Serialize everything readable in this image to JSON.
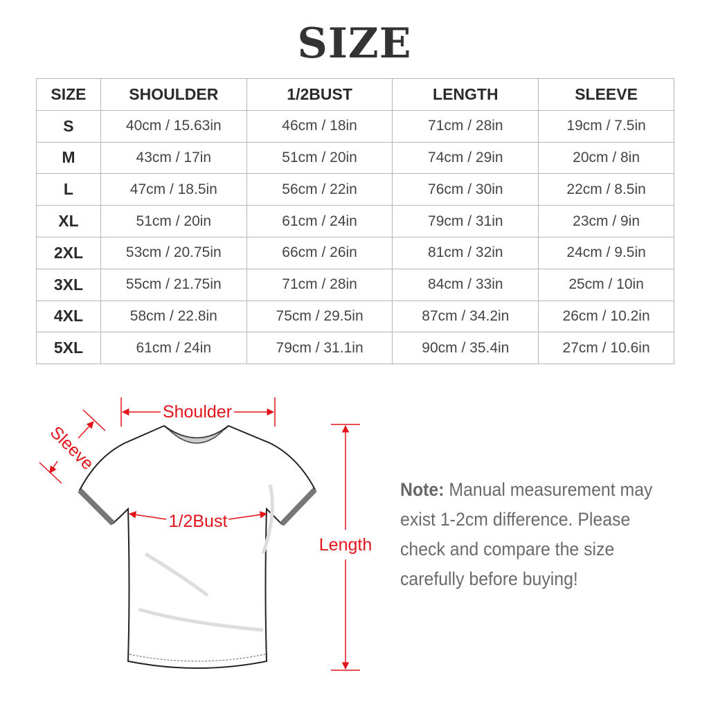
{
  "title": "SIZE",
  "table": {
    "headers": [
      "SIZE",
      "SHOULDER",
      "1/2BUST",
      "LENGTH",
      "SLEEVE"
    ],
    "rows": [
      [
        "S",
        "40cm / 15.63in",
        "46cm / 18in",
        "71cm / 28in",
        "19cm / 7.5in"
      ],
      [
        "M",
        "43cm / 17in",
        "51cm / 20in",
        "74cm / 29in",
        "20cm / 8in"
      ],
      [
        "L",
        "47cm / 18.5in",
        "56cm / 22in",
        "76cm / 30in",
        "22cm / 8.5in"
      ],
      [
        "XL",
        "51cm / 20in",
        "61cm / 24in",
        "79cm / 31in",
        "23cm / 9in"
      ],
      [
        "2XL",
        "53cm / 20.75in",
        "66cm / 26in",
        "81cm / 32in",
        "24cm / 9.5in"
      ],
      [
        "3XL",
        "55cm / 21.75in",
        "71cm / 28in",
        "84cm / 33in",
        "25cm / 10in"
      ],
      [
        "4XL",
        "58cm / 22.8in",
        "75cm / 29.5in",
        "87cm / 34.2in",
        "26cm / 10.2in"
      ],
      [
        "5XL",
        "61cm / 24in",
        "79cm / 31.1in",
        "90cm / 35.4in",
        "27cm / 10.6in"
      ]
    ]
  },
  "diagram": {
    "shoulder_label": "Shoulder",
    "sleeve_label": "Sleeve",
    "bust_label": "1/2Bust",
    "length_label": "Length",
    "accent_color": "#e3131b"
  },
  "note": {
    "label": "Note:",
    "text": "Manual measurement may exist 1-2cm difference. Please check and compare the size carefully before buying!"
  }
}
